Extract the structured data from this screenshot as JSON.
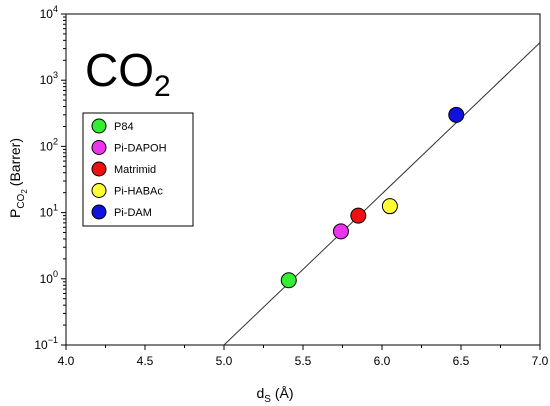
{
  "chart_data": {
    "type": "scatter",
    "title": "CO",
    "title_subscript": "2",
    "xlabel": {
      "base": "d",
      "sub": "S",
      "unit": " (Å)"
    },
    "ylabel": {
      "base": "P",
      "sub": "CO",
      "subsub": "2",
      "unit": "(Barrer)"
    },
    "xlim": [
      4.0,
      7.0
    ],
    "ylim": [
      0.1,
      10000
    ],
    "y_scale": "log",
    "x_ticks": [
      "4.0",
      "4.5",
      "5.0",
      "5.5",
      "6.0",
      "6.5",
      "7.0"
    ],
    "y_ticks": [
      {
        "base": "10",
        "exp": "−1"
      },
      {
        "base": "10",
        "exp": "0"
      },
      {
        "base": "10",
        "exp": "1"
      },
      {
        "base": "10",
        "exp": "2"
      },
      {
        "base": "10",
        "exp": "3"
      },
      {
        "base": "10",
        "exp": "4"
      }
    ],
    "grid": false,
    "legend_position": "middle-left",
    "series": [
      {
        "name": "P84",
        "x": 5.41,
        "y": 0.95,
        "color": "#33ee33"
      },
      {
        "name": "Pi-DAPOH",
        "x": 5.74,
        "y": 5.2,
        "color": "#ee33ee"
      },
      {
        "name": "Matrimid",
        "x": 5.85,
        "y": 9.0,
        "color": "#ee1111"
      },
      {
        "name": "Pi-HABAc",
        "x": 6.05,
        "y": 12.5,
        "color": "#ffff33"
      },
      {
        "name": "Pi-DAM",
        "x": 6.47,
        "y": 300,
        "color": "#1111dd"
      }
    ],
    "fit_line": {
      "x": [
        5.0,
        7.0
      ],
      "y": [
        0.1,
        3700
      ]
    }
  }
}
